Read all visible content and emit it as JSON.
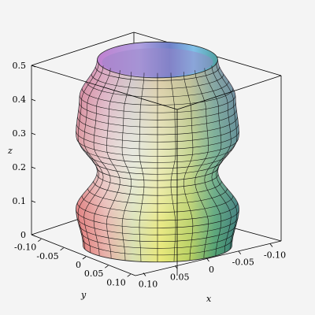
{
  "chart_data": {
    "type": "surface3d",
    "title": "",
    "axes": {
      "x": {
        "label": "x",
        "range": [
          -0.12,
          0.12
        ],
        "ticks": [
          "0.10",
          "0.05",
          "0",
          "-0.05",
          "-0.10"
        ]
      },
      "y": {
        "label": "y",
        "range": [
          -0.12,
          0.12
        ],
        "ticks": [
          "-0.10",
          "-0.05",
          "0",
          "0.05",
          "0.10"
        ]
      },
      "z": {
        "label": "z",
        "range": [
          0,
          0.5
        ],
        "ticks": [
          "0",
          "0.1",
          "0.2",
          "0.3",
          "0.4",
          "0.5"
        ]
      }
    },
    "surface": {
      "kind": "surface of revolution (vase)",
      "profile_radius_vs_z": [
        [
          0.0,
          0.105
        ],
        [
          0.1,
          0.115
        ],
        [
          0.2,
          0.085
        ],
        [
          0.3,
          0.115
        ],
        [
          0.4,
          0.11
        ],
        [
          0.5,
          0.085
        ]
      ],
      "coloring": "multicolor shaded with black mesh grid"
    },
    "grid": false,
    "box": true
  }
}
